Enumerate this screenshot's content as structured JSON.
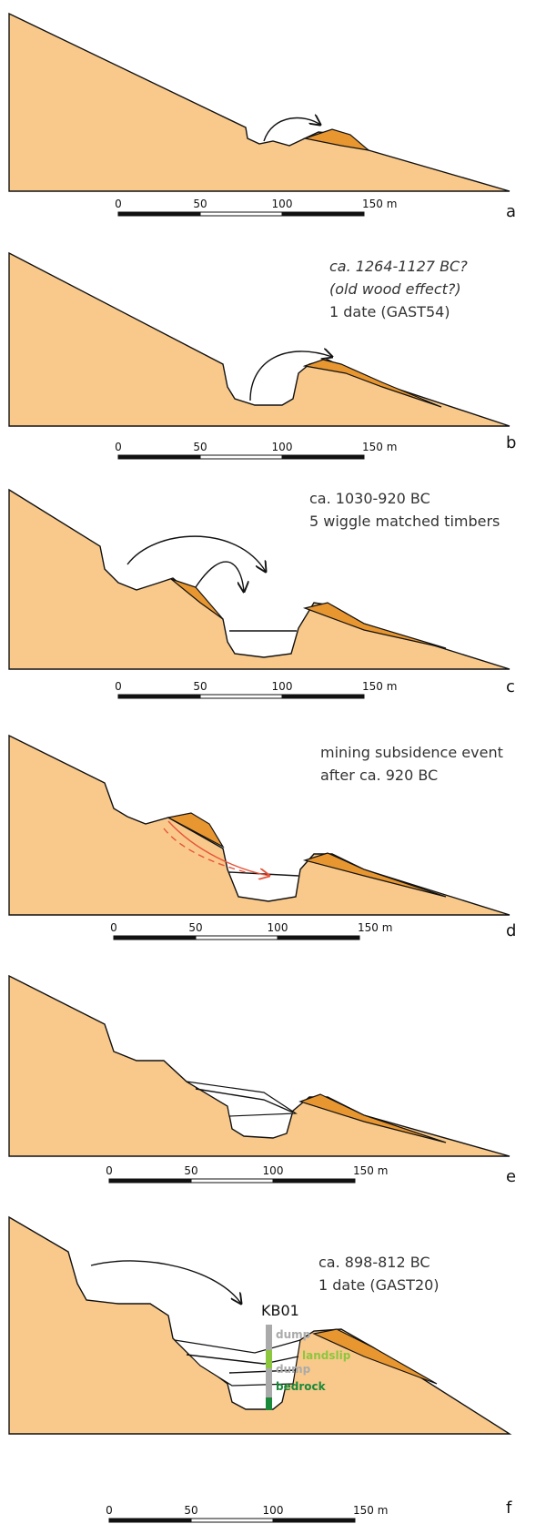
{
  "panels": [
    {
      "letter": "a",
      "annotation": [],
      "scale": [
        "0",
        "50",
        "100",
        "150 m"
      ]
    },
    {
      "letter": "b",
      "annotation": [
        "ca. 1264-1127 BC?",
        "(old wood effect?)",
        "1 date (GAST54)"
      ],
      "scale": [
        "0",
        "50",
        "100",
        "150 m"
      ]
    },
    {
      "letter": "c",
      "annotation": [
        "ca. 1030-920 BC",
        "5 wiggle matched timbers"
      ],
      "scale": [
        "0",
        "50",
        "100",
        "150 m"
      ]
    },
    {
      "letter": "d",
      "annotation": [
        "mining subsidence event",
        "after ca. 920 BC"
      ],
      "scale": [
        "0",
        "50",
        "100",
        "150 m"
      ]
    },
    {
      "letter": "e",
      "annotation": [],
      "scale": [
        "0",
        "50",
        "100",
        "150 m"
      ]
    },
    {
      "letter": "f",
      "annotation": [
        "ca. 898-812 BC",
        "1 date (GAST20)"
      ],
      "scale": [
        "0",
        "50",
        "100",
        "150 m"
      ]
    }
  ],
  "core": {
    "label": "KB01",
    "layers": [
      "dump",
      "landslip",
      "dump",
      "bedrock"
    ]
  }
}
